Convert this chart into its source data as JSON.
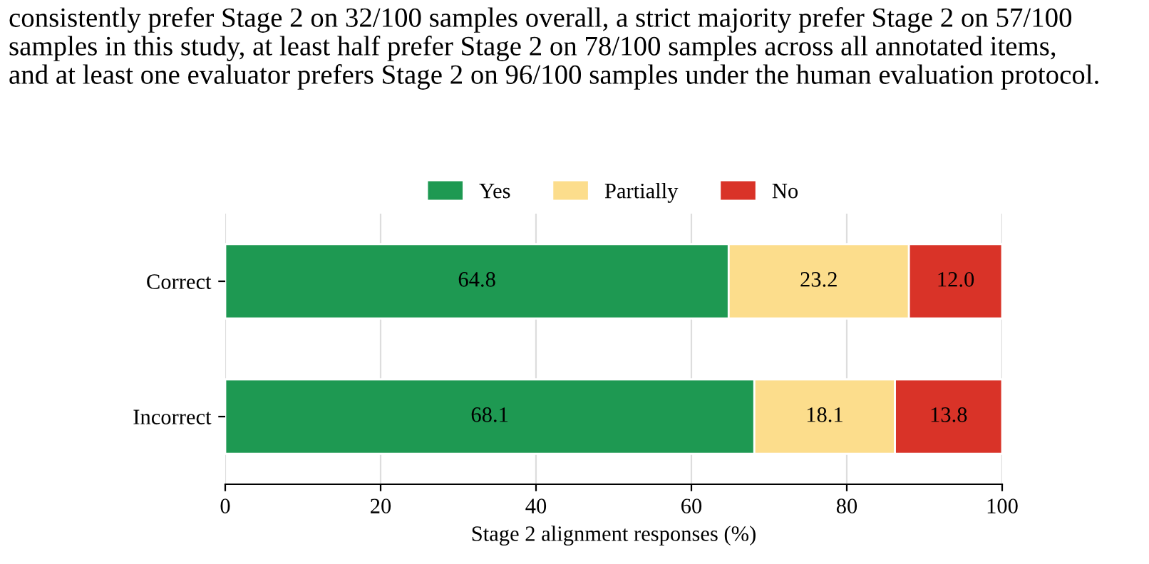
{
  "chart_data": {
    "type": "bar",
    "orientation": "horizontal",
    "stacked": true,
    "categories": [
      "Correct",
      "Incorrect"
    ],
    "series": [
      {
        "name": "Yes",
        "color": "#1e9952",
        "values": [
          64.8,
          68.1
        ],
        "value_labels": [
          "64.8",
          "68.1"
        ]
      },
      {
        "name": "Partially",
        "color": "#fcdd8c",
        "values": [
          23.2,
          18.1
        ],
        "value_labels": [
          "23.2",
          "18.1"
        ]
      },
      {
        "name": "No",
        "color": "#d93328",
        "values": [
          12.0,
          13.8
        ],
        "value_labels": [
          "12.0",
          "13.8"
        ]
      }
    ],
    "xlabel": "Stage 2 alignment responses (%)",
    "xlim": [
      0,
      100
    ],
    "xticks": [
      0,
      20,
      40,
      60,
      80,
      100
    ],
    "grid": "x",
    "legend": "top",
    "annotations": [
      "consistently prefer Stage 2 on 32/100 samples overall, a strict majority prefer Stage 2 on 57/100",
      "samples in this study, at least half prefer Stage 2 on 78/100 samples across all annotated items,",
      "and at least one evaluator prefers Stage 2 on 96/100 samples under the human evaluation protocol."
    ]
  }
}
